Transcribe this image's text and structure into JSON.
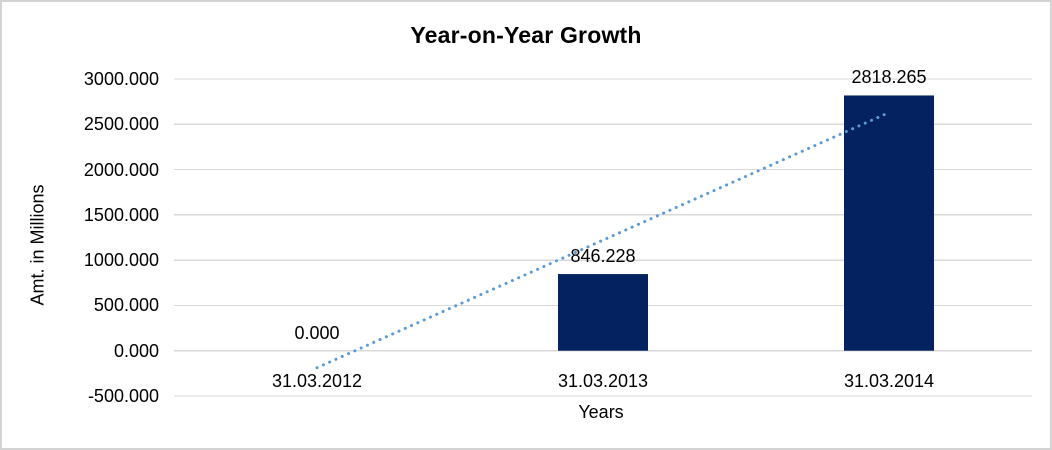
{
  "chart_data": {
    "type": "bar",
    "title": "Year-on-Year Growth",
    "xlabel": "Years",
    "ylabel": "Amt. in Millions",
    "categories": [
      "31.03.2012",
      "31.03.2013",
      "31.03.2014"
    ],
    "values": [
      0.0,
      846.228,
      2818.265
    ],
    "data_labels": [
      "0.000",
      "846.228",
      "2818.265"
    ],
    "y_ticks": [
      -500,
      0,
      500,
      1000,
      1500,
      2000,
      2500,
      3000
    ],
    "y_tick_labels": [
      "-500.000",
      "0.000",
      "500.000",
      "1000.000",
      "1500.000",
      "2000.000",
      "2500.000",
      "3000.000"
    ],
    "ylim": [
      -500,
      3000
    ],
    "grid": "horizontal",
    "legend": "none",
    "bar_color": "#03225F",
    "gridline_color": "#D9D9D9",
    "trendline": {
      "style": "dotted",
      "color": "#5B9BD5",
      "start_value": -187.6,
      "end_value": 2630.0
    }
  }
}
